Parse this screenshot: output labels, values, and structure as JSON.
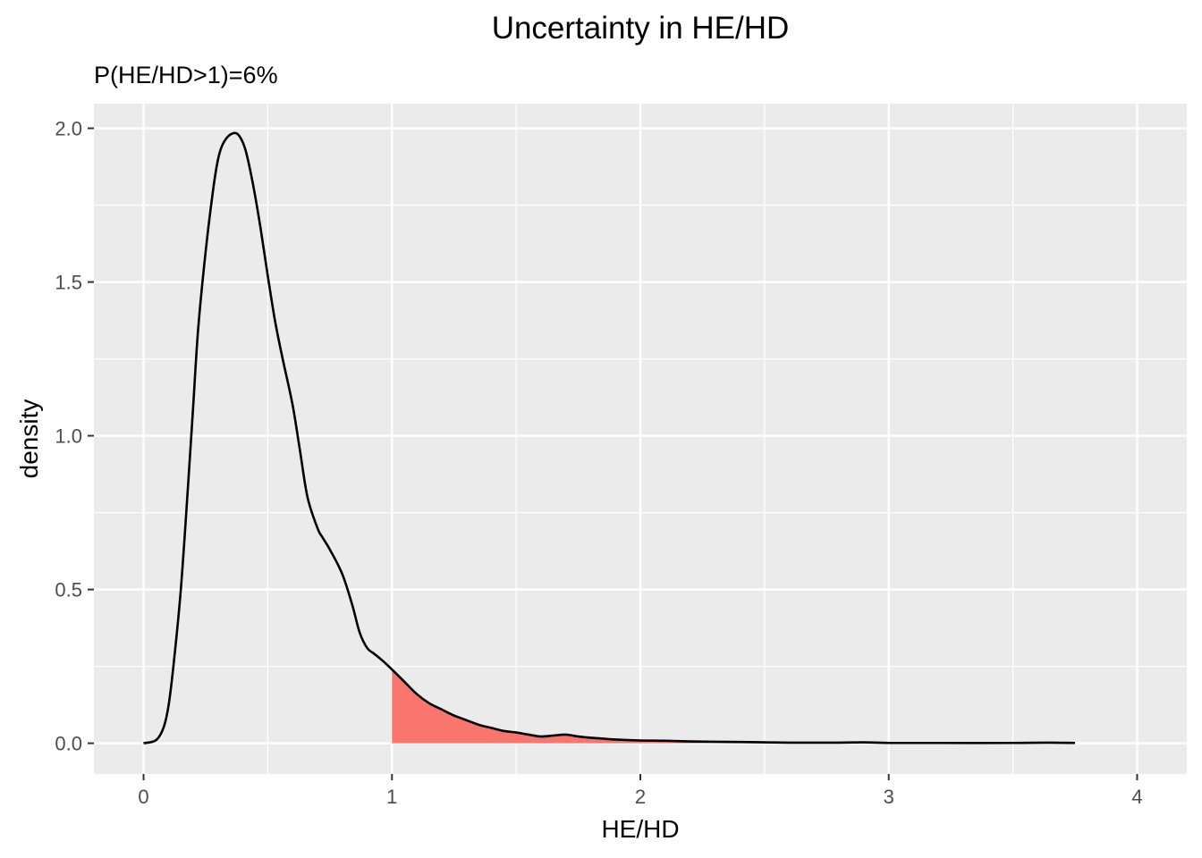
{
  "chart_data": {
    "type": "area",
    "title": "Uncertainty in HE/HD",
    "subtitle": "P(HE/HD>1)=6%",
    "xlabel": "HE/HD",
    "ylabel": "density",
    "xlim": [
      -0.2,
      4.2
    ],
    "ylim": [
      -0.1,
      2.08
    ],
    "x_ticks": [
      0,
      1,
      2,
      3,
      4
    ],
    "x_tick_labels": [
      "0",
      "1",
      "2",
      "3",
      "4"
    ],
    "y_ticks": [
      0.0,
      0.5,
      1.0,
      1.5,
      2.0
    ],
    "y_tick_labels": [
      "0.0",
      "0.5",
      "1.0",
      "1.5",
      "2.0"
    ],
    "grid": true,
    "shade_threshold": 1.0,
    "colors": {
      "panel": "#ebebeb",
      "grid": "#ffffff",
      "line": "#000000",
      "fill": "#f8766d"
    },
    "series": [
      {
        "x": [
          0.0,
          0.05,
          0.08,
          0.1,
          0.12,
          0.15,
          0.18,
          0.2,
          0.22,
          0.25,
          0.28,
          0.3,
          0.32,
          0.35,
          0.38,
          0.41,
          0.44,
          0.47,
          0.5,
          0.53,
          0.56,
          0.6,
          0.63,
          0.66,
          0.7,
          0.72,
          0.75,
          0.8,
          0.84,
          0.87,
          0.9,
          0.93,
          0.96,
          1.0,
          1.05,
          1.1,
          1.15,
          1.2,
          1.25,
          1.3,
          1.35,
          1.4,
          1.45,
          1.5,
          1.55,
          1.6,
          1.65,
          1.7,
          1.75,
          1.8,
          1.85,
          1.9,
          2.0,
          2.1,
          2.2,
          2.3,
          2.4,
          2.5,
          2.6,
          2.8,
          2.9,
          3.0,
          3.2,
          3.5,
          3.65,
          3.75
        ],
        "y": [
          0.0,
          0.01,
          0.05,
          0.12,
          0.25,
          0.5,
          0.85,
          1.1,
          1.35,
          1.6,
          1.8,
          1.9,
          1.95,
          1.98,
          1.98,
          1.93,
          1.82,
          1.68,
          1.52,
          1.37,
          1.25,
          1.1,
          0.95,
          0.8,
          0.7,
          0.67,
          0.63,
          0.55,
          0.45,
          0.36,
          0.31,
          0.29,
          0.27,
          0.24,
          0.2,
          0.16,
          0.13,
          0.11,
          0.09,
          0.075,
          0.06,
          0.05,
          0.04,
          0.035,
          0.028,
          0.022,
          0.025,
          0.028,
          0.022,
          0.018,
          0.015,
          0.012,
          0.009,
          0.008,
          0.006,
          0.005,
          0.004,
          0.003,
          0.002,
          0.002,
          0.003,
          0.001,
          0.001,
          0.001,
          0.002,
          0.001
        ]
      }
    ]
  }
}
